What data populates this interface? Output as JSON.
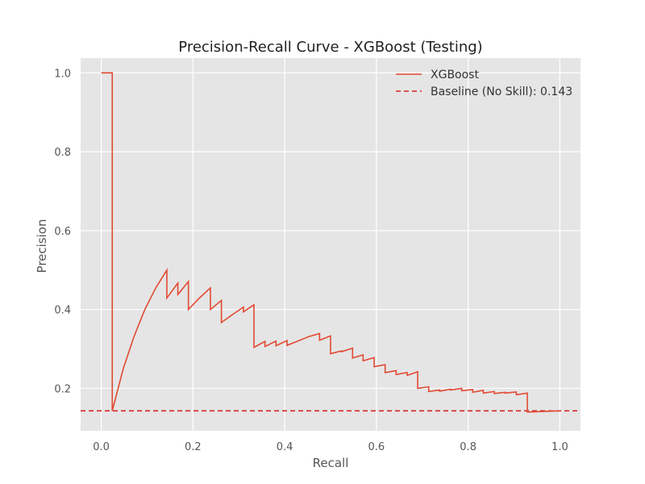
{
  "chart_data": {
    "type": "line",
    "title": "Precision-Recall Curve - XGBoost (Testing)",
    "xlabel": "Recall",
    "ylabel": "Precision",
    "xlim": [
      -0.045,
      1.045
    ],
    "ylim": [
      0.0925,
      1.0375
    ],
    "xticks": [
      0.0,
      0.2,
      0.4,
      0.6,
      0.8,
      1.0
    ],
    "xtick_labels": [
      "0.0",
      "0.2",
      "0.4",
      "0.6",
      "0.8",
      "1.0"
    ],
    "yticks": [
      0.2,
      0.4,
      0.6,
      0.8,
      1.0
    ],
    "ytick_labels": [
      "0.2",
      "0.4",
      "0.6",
      "0.8",
      "1.0"
    ],
    "grid": true,
    "legend_position": "top-right",
    "background_color": "#e5e5e5",
    "colors": {
      "curve": "#e24a33",
      "baseline": "#d62728"
    },
    "series": [
      {
        "name": "XGBoost",
        "style": "solid",
        "x": [
          0.0,
          0.024,
          0.024,
          0.048,
          0.071,
          0.095,
          0.119,
          0.143,
          0.143,
          0.167,
          0.167,
          0.19,
          0.19,
          0.214,
          0.238,
          0.238,
          0.262,
          0.262,
          0.286,
          0.31,
          0.31,
          0.333,
          0.333,
          0.357,
          0.357,
          0.381,
          0.381,
          0.405,
          0.405,
          0.429,
          0.452,
          0.476,
          0.476,
          0.5,
          0.5,
          0.524,
          0.524,
          0.548,
          0.548,
          0.571,
          0.571,
          0.595,
          0.595,
          0.619,
          0.619,
          0.643,
          0.643,
          0.667,
          0.667,
          0.69,
          0.69,
          0.714,
          0.714,
          0.738,
          0.738,
          0.762,
          0.762,
          0.786,
          0.786,
          0.81,
          0.81,
          0.833,
          0.833,
          0.857,
          0.857,
          0.881,
          0.881,
          0.905,
          0.905,
          0.929,
          0.929,
          0.952,
          0.976,
          1.0
        ],
        "y": [
          1.0,
          1.0,
          0.143,
          0.25,
          0.33,
          0.4,
          0.455,
          0.5,
          0.429,
          0.467,
          0.438,
          0.471,
          0.4,
          0.429,
          0.455,
          0.4,
          0.423,
          0.367,
          0.387,
          0.406,
          0.394,
          0.412,
          0.304,
          0.319,
          0.306,
          0.32,
          0.308,
          0.321,
          0.309,
          0.32,
          0.331,
          0.339,
          0.322,
          0.333,
          0.288,
          0.295,
          0.293,
          0.302,
          0.277,
          0.285,
          0.27,
          0.278,
          0.255,
          0.26,
          0.24,
          0.245,
          0.235,
          0.24,
          0.233,
          0.242,
          0.2,
          0.204,
          0.192,
          0.196,
          0.193,
          0.198,
          0.196,
          0.2,
          0.194,
          0.197,
          0.19,
          0.195,
          0.188,
          0.192,
          0.187,
          0.19,
          0.188,
          0.191,
          0.184,
          0.188,
          0.14,
          0.141,
          0.142,
          0.143
        ]
      },
      {
        "name": "Baseline (No Skill): 0.143",
        "style": "dashed",
        "x": [
          -0.045,
          1.045
        ],
        "y": [
          0.143,
          0.143
        ]
      }
    ]
  }
}
